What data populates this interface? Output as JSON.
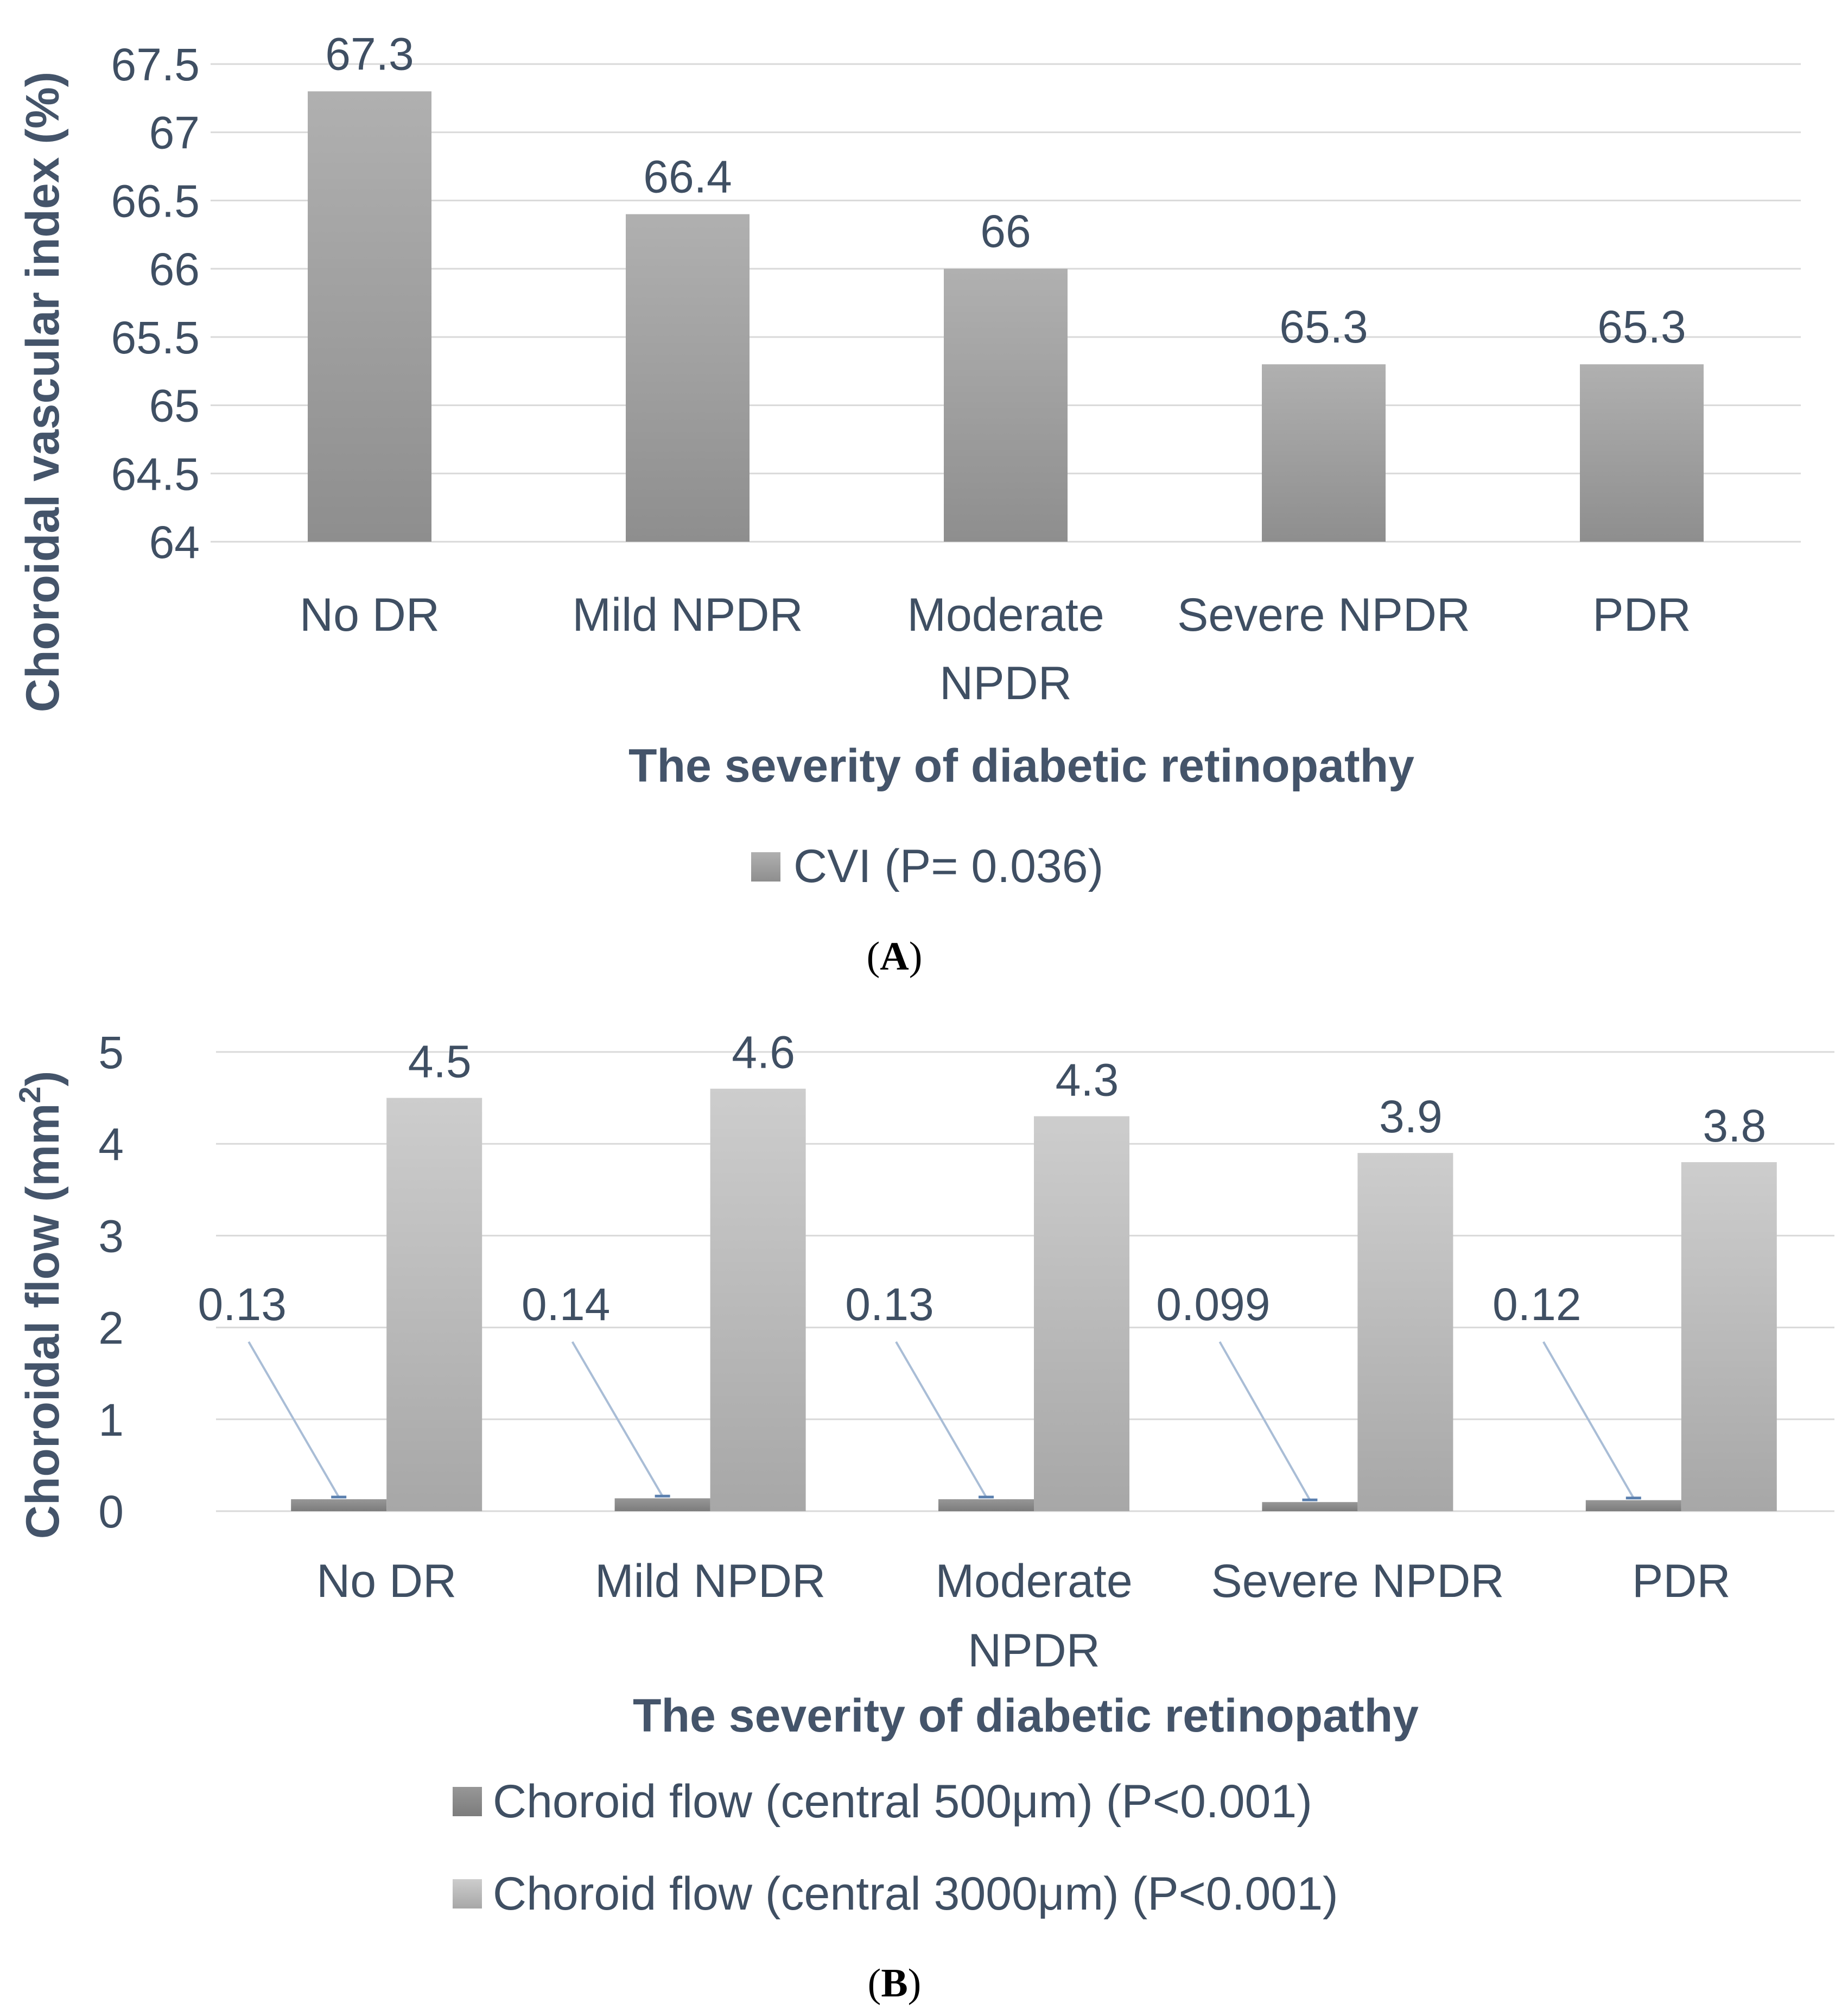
{
  "chart_data": [
    {
      "type": "bar",
      "panel_label": "A",
      "categories": [
        "No DR",
        "Mild NPDR",
        "Moderate NPDR",
        "Severe NPDR",
        "PDR"
      ],
      "category_lines": [
        [
          "No DR"
        ],
        [
          "Mild NPDR"
        ],
        [
          "Moderate",
          "NPDR"
        ],
        [
          "Severe NPDR"
        ],
        [
          "PDR"
        ]
      ],
      "series": [
        {
          "name": "CVI (P= 0.036)",
          "values": [
            67.3,
            66.4,
            66.0,
            65.3,
            65.3
          ],
          "labels": [
            "67.3",
            "66.4",
            "66",
            "65.3",
            "65.3"
          ],
          "color": "#a6a6a6"
        }
      ],
      "xlabel": "The severity of diabetic retinopathy",
      "ylabel": "Choroidal vascular index (%)",
      "ylim": [
        64,
        67.5
      ],
      "yticks": [
        64,
        64.5,
        65,
        65.5,
        66,
        66.5,
        67,
        67.5
      ],
      "ytick_labels": [
        "64",
        "64.5",
        "65",
        "65.5",
        "66",
        "66.5",
        "67",
        "67.5"
      ],
      "grid": true,
      "legend_position": "bottom"
    },
    {
      "type": "bar",
      "panel_label": "B",
      "categories": [
        "No DR",
        "Mild NPDR",
        "Moderate NPDR",
        "Severe NPDR",
        "PDR"
      ],
      "category_lines": [
        [
          "No DR"
        ],
        [
          "Mild NPDR"
        ],
        [
          "Moderate",
          "NPDR"
        ],
        [
          "Severe NPDR"
        ],
        [
          "PDR"
        ]
      ],
      "series": [
        {
          "name": "Choroid flow (central 500μm) (P<0.001)",
          "values": [
            0.13,
            0.14,
            0.13,
            0.099,
            0.12
          ],
          "labels": [
            "0.13",
            "0.14",
            "0.13",
            "0.099",
            "0.12"
          ],
          "color": "#8c8c8c"
        },
        {
          "name": "Choroid flow (central 3000μm) (P<0.001)",
          "values": [
            4.5,
            4.6,
            4.3,
            3.9,
            3.8
          ],
          "labels": [
            "4.5",
            "4.6",
            "4.3",
            "3.9",
            "3.8"
          ],
          "color": "#c4c4c4"
        }
      ],
      "xlabel": "The severity of diabetic retinopathy",
      "ylabel": "Choroidal flow (mm²)",
      "ylabel_main": "Choroidal flow (mm",
      "ylabel_sup": "2",
      "ylabel_end": ")",
      "ylim": [
        0,
        5
      ],
      "yticks": [
        0,
        1,
        2,
        3,
        4,
        5
      ],
      "ytick_labels": [
        "0",
        "1",
        "2",
        "3",
        "4",
        "5"
      ],
      "grid": true,
      "legend_position": "bottom"
    }
  ]
}
